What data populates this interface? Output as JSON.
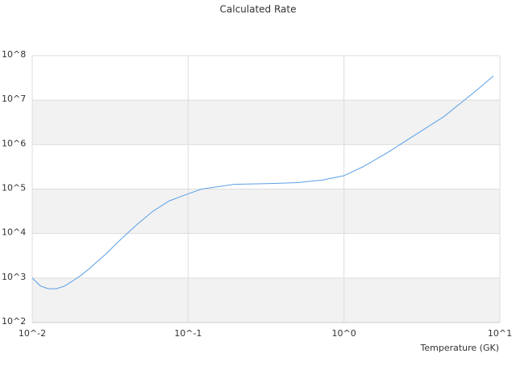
{
  "chart_data": {
    "type": "line",
    "title": "Calculated Rate",
    "x_label": "Temperature (GK)",
    "x": [
      0.01,
      0.0113,
      0.0127,
      0.0143,
      0.0161,
      0.0181,
      0.0204,
      0.023,
      0.0292,
      0.037,
      0.047,
      0.0597,
      0.0755,
      0.1,
      0.122,
      0.155,
      0.197,
      0.357,
      0.51,
      0.73,
      1,
      1.33,
      1.9,
      2.7,
      4.35,
      7.0,
      9.1
    ],
    "series": [
      {
        "color": "#5aa0e6",
        "values": [
          1000,
          660,
          575,
          575,
          660,
          850,
          1130,
          1580,
          3300,
          7400,
          16000,
          32000,
          54000,
          78000,
          100000,
          113000,
          128000,
          134000,
          140000,
          160000,
          200000,
          320000,
          660000,
          1450000,
          4200000,
          16000000,
          35000000
        ]
      }
    ],
    "xlog": true,
    "ylog": true,
    "xlim": [
      0.01,
      10
    ],
    "ylim": [
      100,
      100000000
    ],
    "xticks": [
      {
        "value": 0.01,
        "label": "10^-2"
      },
      {
        "value": 0.1,
        "label": "10^-1"
      },
      {
        "value": 1,
        "label": "10^0"
      },
      {
        "value": 10,
        "label": "10^1"
      }
    ],
    "yticks": [
      {
        "value": 100,
        "label": "10^2"
      },
      {
        "value": 1000,
        "label": "10^3"
      },
      {
        "value": 10000,
        "label": "10^4"
      },
      {
        "value": 100000,
        "label": "10^5"
      },
      {
        "value": 1000000,
        "label": "10^6"
      },
      {
        "value": 10000000,
        "label": "10^7"
      },
      {
        "value": 100000000,
        "label": "10^8"
      }
    ],
    "grid": true,
    "band_color": "#f2f2f2"
  }
}
